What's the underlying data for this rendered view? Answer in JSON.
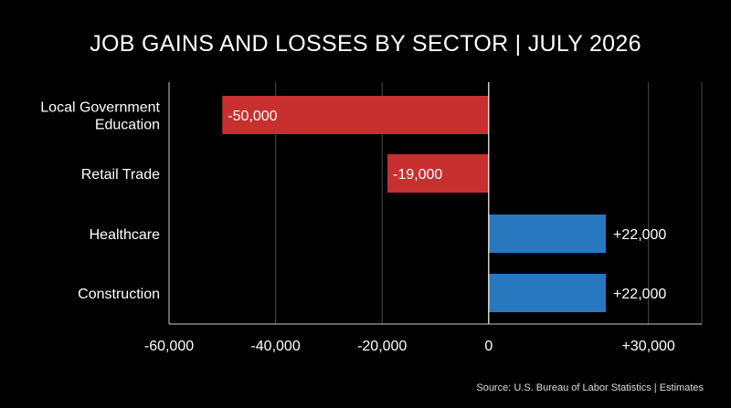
{
  "chart_data": {
    "type": "bar",
    "orientation": "horizontal",
    "title": "JOB GAINS AND LOSSES BY SECTOR | JULY 2026",
    "categories": [
      "Local Government Education",
      "Retail Trade",
      "Healthcare",
      "Construction"
    ],
    "category_lines": [
      [
        "Local Government",
        "Education"
      ],
      [
        "Retail Trade"
      ],
      [
        "Healthcare"
      ],
      [
        "Construction"
      ]
    ],
    "values": [
      -50000,
      -19000,
      22000,
      22000
    ],
    "value_labels": [
      "-50,000",
      "-19,000",
      "+22,000",
      "+22,000"
    ],
    "xlim": [
      -60000,
      40000
    ],
    "x_ticks": [
      -60000,
      -40000,
      -20000,
      0,
      30000
    ],
    "x_tick_labels": [
      "-60,000",
      "-40,000",
      "-20,000",
      "0",
      "+30,000"
    ],
    "grid": true,
    "colors": {
      "negative": "#c8302f",
      "positive": "#2878c0",
      "background": "#000000",
      "grid": "#4a4a4a",
      "axis": "#cccccc"
    },
    "source": "Source: U.S. Bureau of Labor Statistics | Estimates"
  }
}
